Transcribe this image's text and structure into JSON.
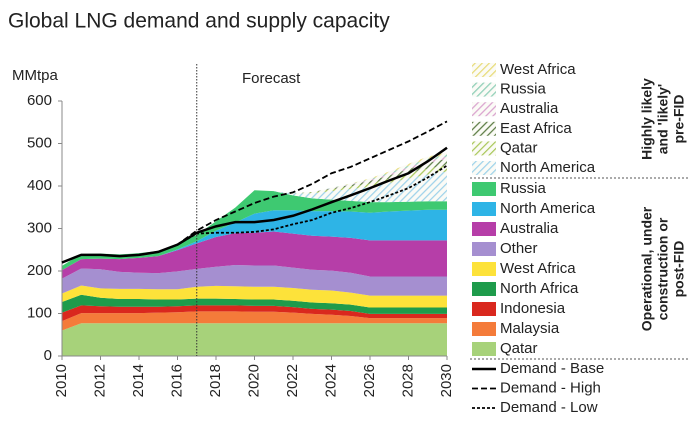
{
  "chart_data": {
    "type": "stacked_area",
    "title": "Global LNG demand and supply capacity",
    "y_label": "MMtpa",
    "annotation": "Forecast",
    "forecast_x": 2017,
    "x": [
      2010,
      2011,
      2012,
      2013,
      2014,
      2015,
      2016,
      2017,
      2018,
      2019,
      2020,
      2021,
      2022,
      2023,
      2024,
      2025,
      2026,
      2027,
      2028,
      2029,
      2030
    ],
    "xlim": [
      2010,
      2030
    ],
    "xticks": [
      2010,
      2012,
      2014,
      2016,
      2018,
      2020,
      2022,
      2024,
      2026,
      2028,
      2030
    ],
    "ylim": [
      0,
      600
    ],
    "yticks": [
      0,
      100,
      200,
      300,
      400,
      500,
      600
    ],
    "groups": [
      {
        "label": [
          "Operational, under",
          "construction or",
          "post-FID"
        ],
        "hatched": false,
        "series": [
          {
            "name": "Qatar",
            "color": "#a7d27a",
            "values": [
              60,
              77,
              77,
              77,
              77,
              77,
              77,
              77,
              77,
              77,
              77,
              77,
              77,
              77,
              77,
              77,
              77,
              77,
              77,
              77,
              77
            ]
          },
          {
            "name": "Malaysia",
            "color": "#f47b3a",
            "values": [
              22,
              24,
              24,
              24,
              24,
              25,
              26,
              28,
              28,
              28,
              27,
              27,
              25,
              22,
              20,
              17,
              12,
              12,
              12,
              12,
              12
            ]
          },
          {
            "name": "Indonesia",
            "color": "#d9281e",
            "values": [
              20,
              18,
              16,
              15,
              15,
              14,
              14,
              14,
              14,
              14,
              14,
              14,
              13,
              12,
              12,
              12,
              10,
              10,
              10,
              10,
              10
            ]
          },
          {
            "name": "North Africa",
            "color": "#1e9b4b",
            "values": [
              25,
              25,
              20,
              18,
              18,
              17,
              16,
              16,
              16,
              15,
              15,
              15,
              15,
              15,
              15,
              15,
              15,
              15,
              15,
              15,
              15
            ]
          },
          {
            "name": "West Africa",
            "color": "#fde23a",
            "values": [
              20,
              22,
              22,
              24,
              24,
              24,
              24,
              28,
              30,
              30,
              30,
              30,
              30,
              30,
              30,
              28,
              28,
              28,
              28,
              28,
              28
            ]
          },
          {
            "name": "Other",
            "color": "#a58fd0",
            "values": [
              35,
              40,
              45,
              40,
              38,
              38,
              42,
              42,
              45,
              50,
              50,
              50,
              48,
              47,
              47,
              47,
              45,
              45,
              45,
              45,
              45
            ]
          },
          {
            "name": "Australia",
            "color": "#b63ea8",
            "values": [
              20,
              22,
              25,
              30,
              35,
              40,
              50,
              60,
              70,
              75,
              77,
              80,
              80,
              80,
              80,
              82,
              85,
              85,
              85,
              85,
              85
            ]
          },
          {
            "name": "North America",
            "color": "#2eb4e6",
            "values": [
              0,
              0,
              0,
              0,
              0,
              0,
              2,
              5,
              15,
              25,
              45,
              50,
              55,
              58,
              60,
              62,
              65,
              68,
              70,
              72,
              72
            ]
          },
          {
            "name": "Russia",
            "color": "#3ec971",
            "values": [
              10,
              12,
              12,
              11,
              11,
              12,
              13,
              15,
              22,
              35,
              55,
              45,
              35,
              30,
              27,
              25,
              25,
              22,
              21,
              20,
              20
            ]
          }
        ]
      },
      {
        "label": [
          "Highly likely",
          "and 'likely'",
          "pre-FID"
        ],
        "hatched": true,
        "series": [
          {
            "name": "North America",
            "color": "#9fd3ea",
            "values": [
              0,
              0,
              0,
              0,
              0,
              0,
              0,
              0,
              0,
              0,
              0,
              0,
              5,
              12,
              20,
              28,
              36,
              45,
              55,
              63,
              70
            ]
          },
          {
            "name": "Qatar",
            "color": "#a9c85a",
            "values": [
              0,
              0,
              0,
              0,
              0,
              0,
              0,
              0,
              0,
              0,
              0,
              0,
              0,
              2,
              4,
              6,
              8,
              10,
              12,
              14,
              15
            ]
          },
          {
            "name": "East Africa",
            "color": "#5d7d45",
            "values": [
              0,
              0,
              0,
              0,
              0,
              0,
              0,
              0,
              0,
              0,
              0,
              0,
              0,
              1,
              2,
              4,
              6,
              8,
              10,
              13,
              15
            ]
          },
          {
            "name": "Australia",
            "color": "#d9a2cf",
            "values": [
              0,
              0,
              0,
              0,
              0,
              0,
              0,
              0,
              0,
              0,
              0,
              0,
              0,
              0,
              1,
              1,
              2,
              3,
              4,
              5,
              5
            ]
          },
          {
            "name": "Russia",
            "color": "#8fcfb8",
            "values": [
              0,
              0,
              0,
              0,
              0,
              0,
              0,
              0,
              0,
              0,
              0,
              0,
              0,
              0,
              1,
              1,
              2,
              3,
              4,
              5,
              5
            ]
          },
          {
            "name": "West Africa",
            "color": "#e8dc7a",
            "values": [
              0,
              0,
              0,
              0,
              0,
              0,
              0,
              0,
              0,
              0,
              0,
              0,
              0,
              0,
              0,
              1,
              2,
              3,
              4,
              5,
              5
            ]
          }
        ]
      }
    ],
    "lines": [
      {
        "name": "Demand - Base",
        "color": "#000000",
        "dash": "solid",
        "values": [
          220,
          238,
          238,
          235,
          238,
          245,
          262,
          290,
          305,
          315,
          315,
          320,
          330,
          345,
          362,
          378,
          395,
          413,
          430,
          458,
          490
        ]
      },
      {
        "name": "Demand - High",
        "color": "#000000",
        "dash": "long",
        "values": [
          220,
          238,
          238,
          235,
          238,
          245,
          262,
          295,
          320,
          340,
          360,
          375,
          385,
          405,
          430,
          445,
          465,
          485,
          505,
          528,
          552
        ]
      },
      {
        "name": "Demand - Low",
        "color": "#000000",
        "dash": "short",
        "values": [
          220,
          238,
          238,
          235,
          238,
          245,
          262,
          288,
          290,
          290,
          292,
          298,
          310,
          320,
          337,
          348,
          362,
          378,
          395,
          420,
          448
        ]
      }
    ]
  }
}
